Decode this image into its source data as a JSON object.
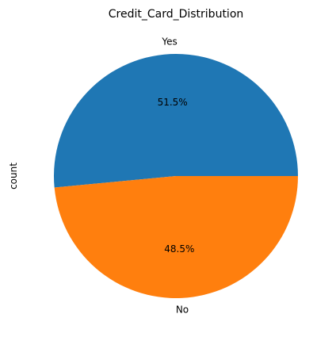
{
  "chart_data": {
    "type": "pie",
    "title": "Credit_Card_Distribution",
    "ylabel": "count",
    "slices": [
      {
        "label": "Yes",
        "percent": 51.5,
        "pct_label": "51.5%",
        "color": "#1f77b4"
      },
      {
        "label": "No",
        "percent": 48.5,
        "pct_label": "48.5%",
        "color": "#ff7f0e"
      }
    ],
    "start_angle_deg": 0,
    "direction": "counterclockwise"
  }
}
